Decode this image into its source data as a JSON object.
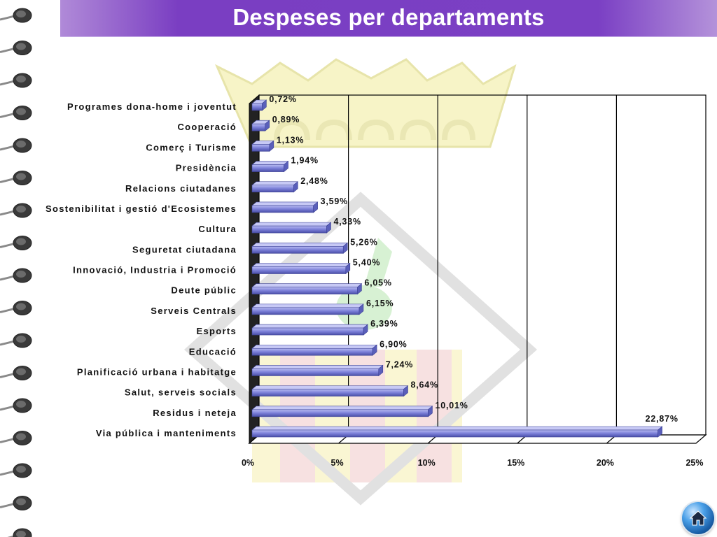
{
  "title": "Despeses per departaments",
  "colors": {
    "title_bg": "#7b40c4",
    "bar": "#7b7fd8",
    "bar_dark": "#4a4fa8"
  },
  "nav": {
    "home_icon": "home-icon"
  },
  "chart_data": {
    "type": "bar",
    "orientation": "horizontal",
    "xlim": [
      0,
      25
    ],
    "ticks": [
      "0%",
      "5%",
      "10%",
      "15%",
      "20%",
      "25%"
    ],
    "grid": true,
    "categories": [
      "Programes dona-home i joventut",
      "Cooperació",
      "Comerç i Turisme",
      "Presidència",
      "Relacions ciutadanes",
      "Sostenibilitat i gestió d'Ecosistemes",
      "Cultura",
      "Seguretat ciutadana",
      "Innovació, Industria i Promoció",
      "Deute públic",
      "Serveis Centrals",
      "Esports",
      "Educació",
      "Planificació urbana i habitatge",
      "Salut, serveis socials",
      "Residus i neteja",
      "Via pública i manteniments"
    ],
    "values": [
      0.72,
      0.89,
      1.13,
      1.94,
      2.48,
      3.59,
      4.33,
      5.26,
      5.4,
      6.05,
      6.15,
      6.39,
      6.9,
      7.24,
      8.64,
      10.01,
      22.87
    ],
    "labels": [
      "0,72%",
      "0,89%",
      "1,13%",
      "1,94%",
      "2,48%",
      "3,59%",
      "4,33%",
      "5,26%",
      "5,40%",
      "6,05%",
      "6,15%",
      "6,39%",
      "6,90%",
      "7,24%",
      "8,64%",
      "10,01%",
      "22,87%"
    ]
  }
}
